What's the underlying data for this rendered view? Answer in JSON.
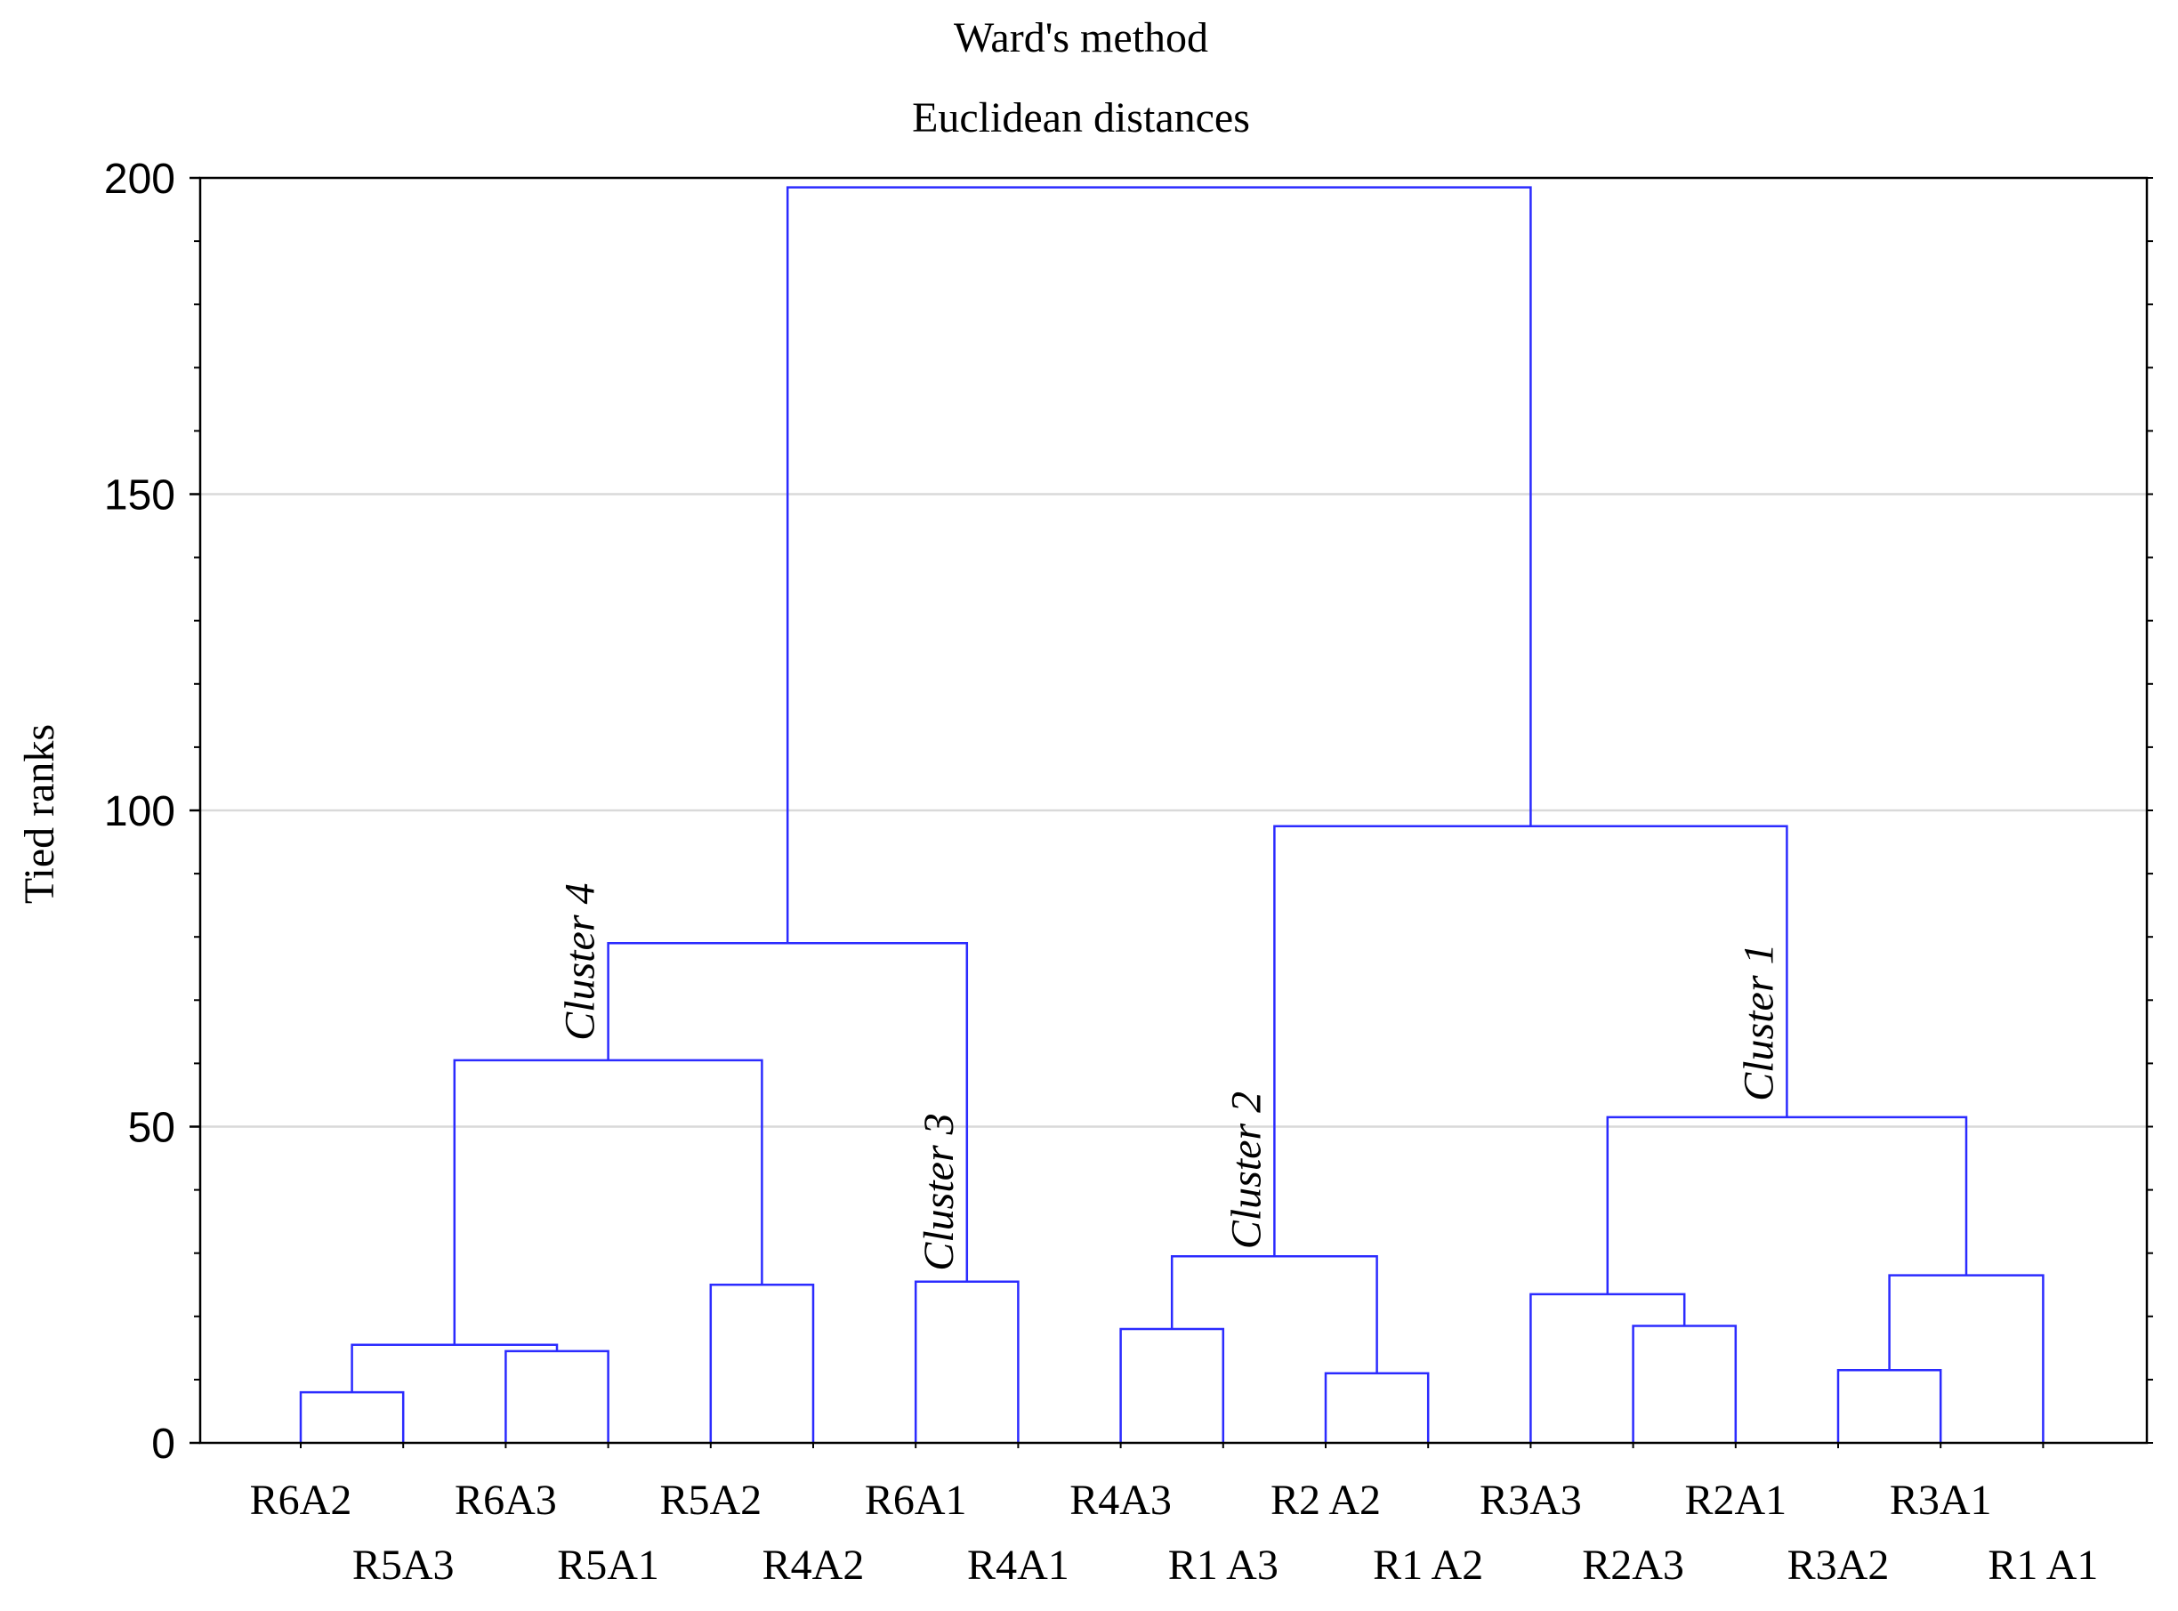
{
  "chart_data": {
    "type": "dendrogram",
    "title": "Ward's method",
    "subtitle": "Euclidean distances",
    "ylabel": "Tied ranks",
    "xlabel": "",
    "ylim": [
      0,
      200
    ],
    "yticks": [
      0,
      50,
      100,
      150,
      200
    ],
    "grid": true,
    "line_color": "#2b2bff",
    "grid_color": "#d9d9d9",
    "leaves": [
      "R6A2",
      "R5A3",
      "R6A3",
      "R5A1",
      "R5A2",
      "R4A2",
      "R6A1",
      "R4A1",
      "R4A3",
      "R1 A3",
      "R2 A2",
      "R1 A2",
      "R3A3",
      "R2A3",
      "R2A1",
      "R3A2",
      "R3A1",
      "R1 A1"
    ],
    "merges": [
      {
        "children": [
          "R6A2",
          "R5A3"
        ],
        "height": 8
      },
      {
        "children": [
          "R6A3",
          "R5A1"
        ],
        "height": 14.5
      },
      {
        "children": [
          "m0",
          "m1"
        ],
        "height": 15.5
      },
      {
        "children": [
          "R5A2",
          "R4A2"
        ],
        "height": 25
      },
      {
        "children": [
          "m2",
          "m3"
        ],
        "height": 60.5
      },
      {
        "children": [
          "R6A1",
          "R4A1"
        ],
        "height": 25.5
      },
      {
        "children": [
          "m4",
          "m5"
        ],
        "height": 79
      },
      {
        "children": [
          "R4A3",
          "R1 A3"
        ],
        "height": 18
      },
      {
        "children": [
          "R2 A2",
          "R1 A2"
        ],
        "height": 11
      },
      {
        "children": [
          "m7",
          "m8"
        ],
        "height": 29.5
      },
      {
        "children": [
          "R2A1",
          "R2A3"
        ],
        "height": 18.5
      },
      {
        "children": [
          "R3A3",
          "m10"
        ],
        "height": 23.5
      },
      {
        "children": [
          "R3A2",
          "R3A1"
        ],
        "height": 11.5
      },
      {
        "children": [
          "m12",
          "R1 A1"
        ],
        "height": 26.5
      },
      {
        "children": [
          "m11",
          "m13"
        ],
        "height": 51.5
      },
      {
        "children": [
          "m9",
          "m14"
        ],
        "height": 97.5
      },
      {
        "children": [
          "m6",
          "m15"
        ],
        "height": 198.5
      }
    ],
    "annotations": [
      {
        "text": "Cluster 4",
        "merge": 4
      },
      {
        "text": "Cluster 3",
        "merge": 5
      },
      {
        "text": "Cluster 2",
        "merge": 9
      },
      {
        "text": "Cluster 1",
        "merge": 14
      }
    ]
  }
}
